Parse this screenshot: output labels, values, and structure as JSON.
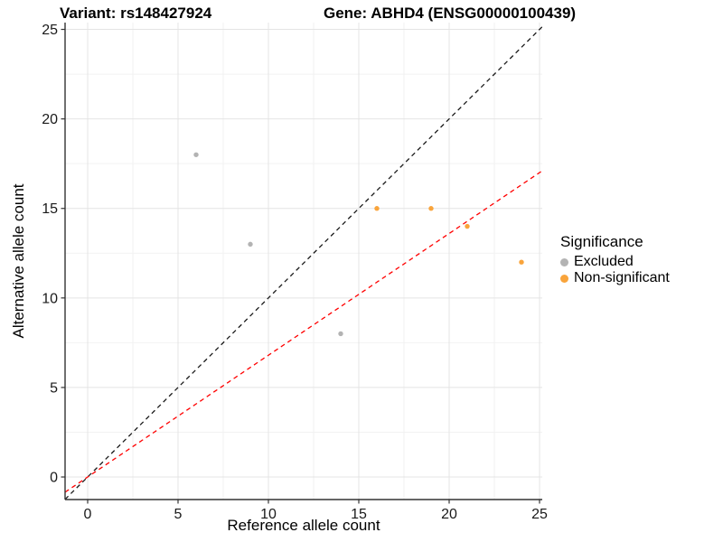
{
  "header": {
    "variant_title": "Variant: rs148427924",
    "gene_title": "Gene: ABHD4 (ENSG00000100439)"
  },
  "legend": {
    "title": "Significance",
    "items": [
      {
        "label": "Excluded",
        "color": "#b3b3b3"
      },
      {
        "label": "Non-significant",
        "color": "#f9a43b"
      }
    ]
  },
  "chart_data": {
    "type": "scatter",
    "titles": {
      "variant": "Variant: rs148427924",
      "gene": "Gene: ABHD4 (ENSG00000100439)"
    },
    "xlabel": "Reference allele count",
    "ylabel": "Alternative allele count",
    "xlim": [
      -1.25,
      25.15
    ],
    "ylim": [
      -1.26,
      25.38
    ],
    "breaks": [
      0,
      5,
      10,
      15,
      20,
      25
    ],
    "minor_breaks": [
      2.5,
      7.5,
      12.5,
      17.5,
      22.5
    ],
    "grid": "major+minor",
    "legend_position": "right",
    "series": [
      {
        "name": "Excluded",
        "color": "#b3b3b3",
        "points": [
          [
            6,
            18
          ],
          [
            9,
            13
          ],
          [
            14,
            8
          ]
        ]
      },
      {
        "name": "Non-significant",
        "color": "#f9a43b",
        "points": [
          [
            16,
            15
          ],
          [
            19,
            15
          ],
          [
            21,
            14
          ],
          [
            24,
            12
          ]
        ]
      }
    ],
    "lines": [
      {
        "name": "identity-line",
        "slope": 1,
        "intercept": 0,
        "color": "#1a1a1a",
        "style": "dashed"
      },
      {
        "name": "expected-ratio-line",
        "slope": 0.68,
        "intercept": 0,
        "color": "#ff0000",
        "style": "dashed"
      }
    ],
    "colors": {
      "grid_major": "#e4e4e4",
      "grid_minor": "#f2f2f2",
      "axis": "#333333",
      "tick_text": "#1a1a1a"
    }
  }
}
